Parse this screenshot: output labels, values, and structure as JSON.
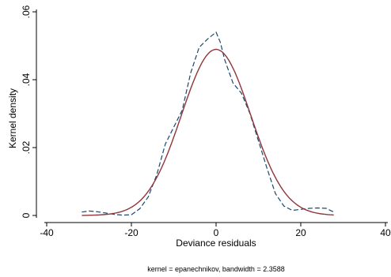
{
  "chart_data": {
    "type": "line",
    "xlabel": "Deviance residuals",
    "ylabel": "Kernel density",
    "note": "kernel = epanechnikov, bandwidth = 2.3588",
    "xlim": [
      -40,
      40
    ],
    "ylim": [
      0,
      0.06
    ],
    "x_ticks": [
      -40,
      -20,
      0,
      20,
      40
    ],
    "x_tick_labels": [
      "-40",
      "-20",
      "0",
      "20",
      "40"
    ],
    "y_ticks": [
      0,
      0.02,
      0.04,
      0.06
    ],
    "y_tick_labels": [
      "0",
      ".02",
      ".04",
      ".06"
    ],
    "grid": false,
    "legend": "none",
    "series": [
      {
        "style": "dashed",
        "color": "#1a476f",
        "x": [
          -31.7,
          -30,
          -28,
          -26,
          -24,
          -22,
          -20,
          -18,
          -16,
          -14,
          -12,
          -10,
          -8,
          -6,
          -4,
          -2,
          0,
          1,
          2,
          4,
          6,
          8,
          10,
          12,
          14,
          16,
          18,
          20,
          22,
          24,
          26,
          27.8
        ],
        "y": [
          0.001,
          0.0013,
          0.0011,
          0.0007,
          0.0003,
          0.0001,
          0.0002,
          0.002,
          0.0055,
          0.012,
          0.021,
          0.026,
          0.031,
          0.042,
          0.0495,
          0.052,
          0.054,
          0.051,
          0.046,
          0.039,
          0.036,
          0.03,
          0.022,
          0.014,
          0.0065,
          0.0028,
          0.0015,
          0.0018,
          0.0021,
          0.0022,
          0.0021,
          0.001
        ]
      },
      {
        "style": "solid",
        "color": "#90353b",
        "mean": 0,
        "sd": 8.15,
        "xrange": [
          -31.7,
          27.8
        ]
      }
    ]
  }
}
